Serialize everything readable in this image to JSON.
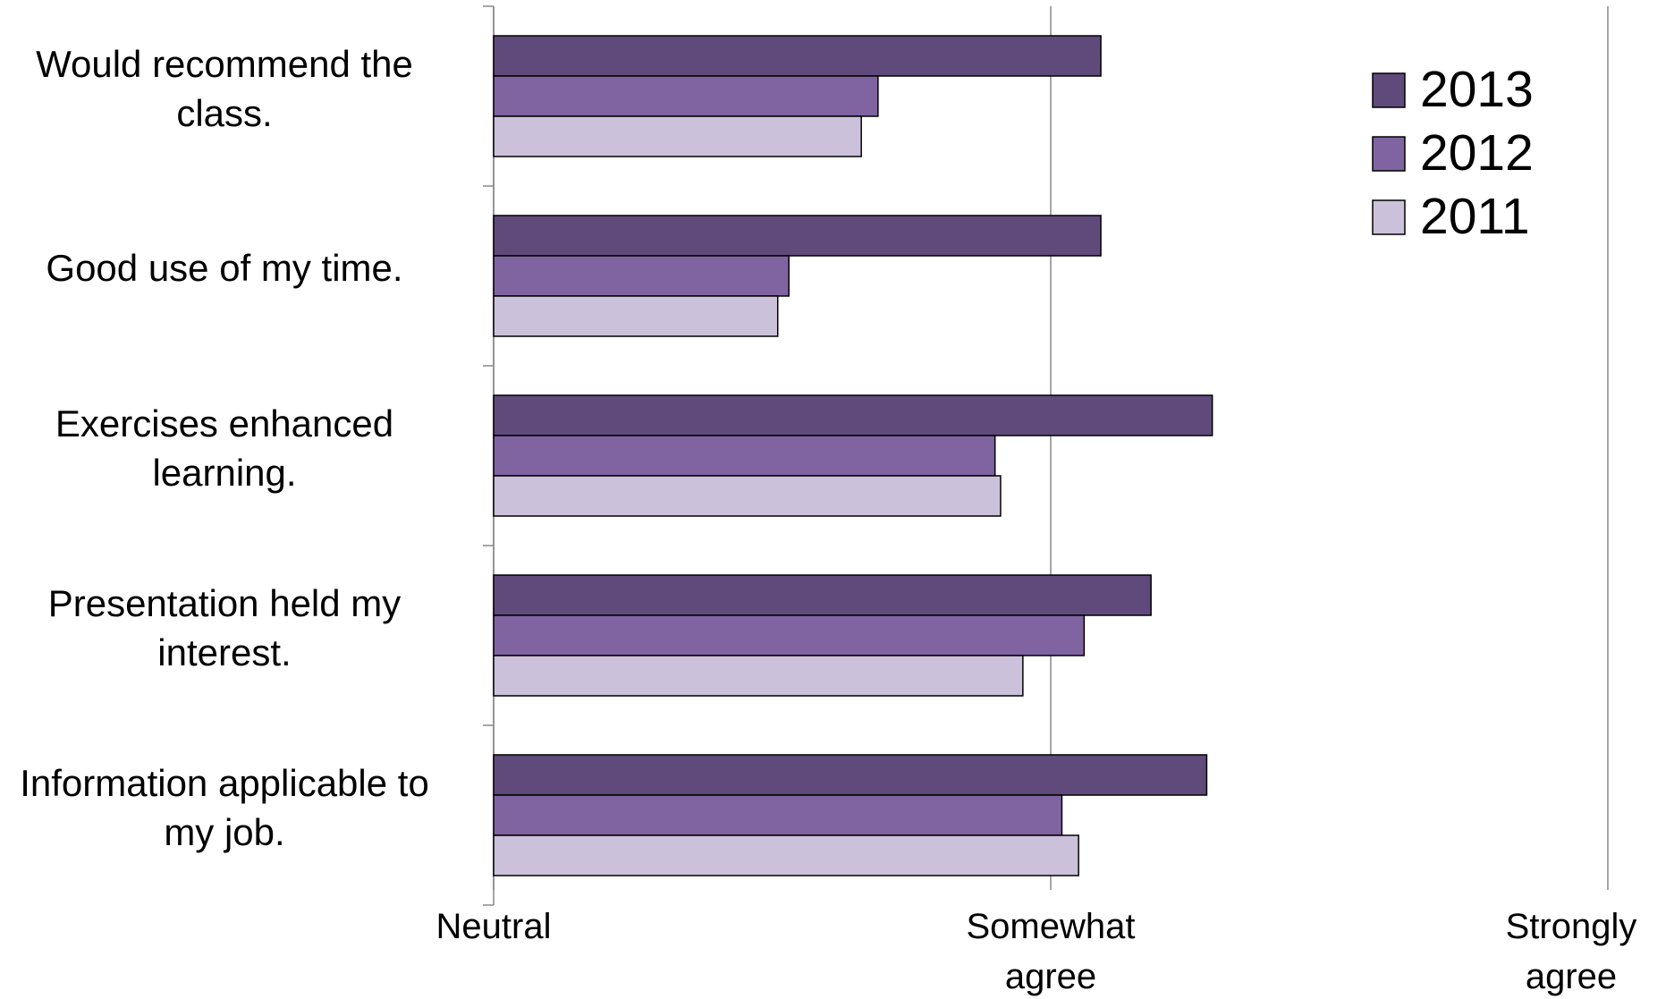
{
  "chart_data": {
    "type": "bar",
    "orientation": "horizontal",
    "categories": [
      "Would recommend the class.",
      "Good use of my time.",
      "Exercises enhanced learning.",
      "Presentation held my interest.",
      "Information applicable to my job."
    ],
    "series": [
      {
        "name": "2013",
        "color": "#604a7b",
        "values": [
          4.09,
          4.09,
          4.29,
          4.18,
          4.28
        ]
      },
      {
        "name": "2012",
        "color": "#8064a2",
        "values": [
          3.69,
          3.53,
          3.9,
          4.06,
          4.02
        ]
      },
      {
        "name": "2011",
        "color": "#ccc1da",
        "values": [
          3.66,
          3.51,
          3.91,
          3.95,
          4.05
        ]
      }
    ],
    "xlim": [
      3,
      5
    ],
    "xticks": [
      {
        "value": 3,
        "label": "Neutral"
      },
      {
        "value": 4,
        "label": "Somewhat agree"
      },
      {
        "value": 5,
        "label": "Strongly agree"
      }
    ],
    "grid": true,
    "legend": "top-right"
  }
}
